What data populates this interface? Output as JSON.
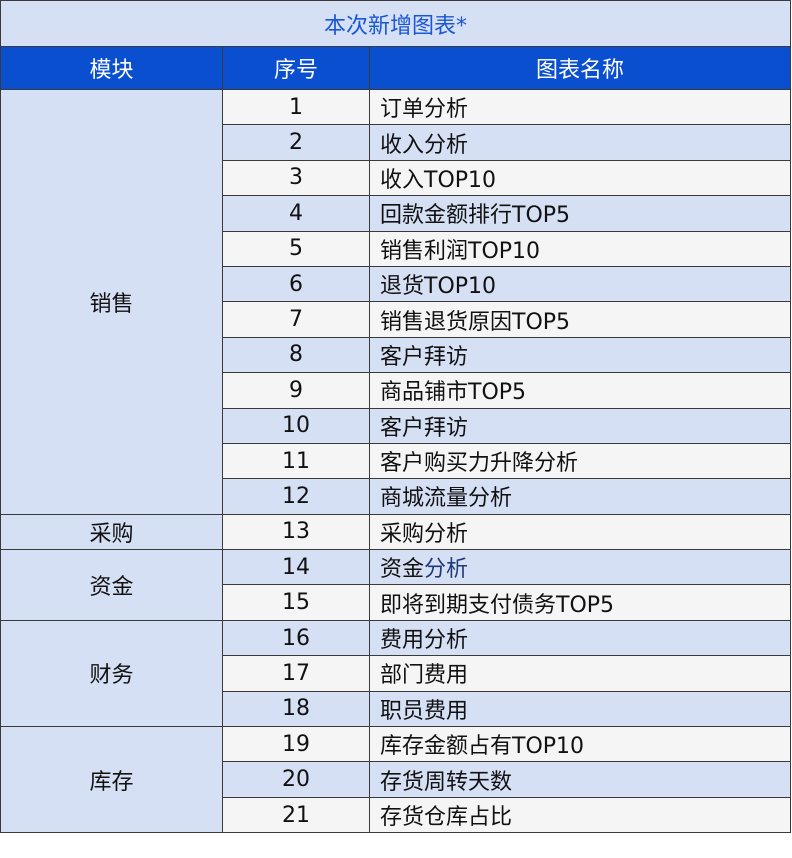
{
  "title": "本次新增图表*",
  "headers": {
    "module": "模块",
    "index": "序号",
    "name": "图表名称"
  },
  "colors": {
    "title_bg": "#d6e0f5",
    "title_text": "#1a56d6",
    "header_bg": "#0b4fd1",
    "row_alt": "#d6e0f5",
    "row_base": "#f5f5f5",
    "highlight_text": "#1f3a7a"
  },
  "modules": [
    {
      "label": "销售",
      "rows": 12
    },
    {
      "label": "采购",
      "rows": 1
    },
    {
      "label": "资金",
      "rows": 2
    },
    {
      "label": "财务",
      "rows": 3
    },
    {
      "label": "库存",
      "rows": 3
    }
  ],
  "rows": [
    {
      "index": "1",
      "name": "订单分析"
    },
    {
      "index": "2",
      "name": "收入分析"
    },
    {
      "index": "3",
      "name": "收入TOP10"
    },
    {
      "index": "4",
      "name": "回款金额排行TOP5"
    },
    {
      "index": "5",
      "name": "销售利润TOP10"
    },
    {
      "index": "6",
      "name": "退货TOP10"
    },
    {
      "index": "7",
      "name": "销售退货原因TOP5"
    },
    {
      "index": "8",
      "name": "客户拜访"
    },
    {
      "index": "9",
      "name": "商品铺市TOP5"
    },
    {
      "index": "10",
      "name": "客户拜访"
    },
    {
      "index": "11",
      "name": "客户购买力升降分析"
    },
    {
      "index": "12",
      "name": "商城流量分析"
    },
    {
      "index": "13",
      "name": "采购分析"
    },
    {
      "index": "14",
      "name": "资金",
      "name_highlight": "分析"
    },
    {
      "index": "15",
      "name": "即将到期支付债务TOP5"
    },
    {
      "index": "16",
      "name": "费用分析"
    },
    {
      "index": "17",
      "name": "部门费用"
    },
    {
      "index": "18",
      "name": "职员费用"
    },
    {
      "index": "19",
      "name": "库存金额占有TOP10"
    },
    {
      "index": "20",
      "name": "存货周转天数"
    },
    {
      "index": "21",
      "name": "存货仓库占比"
    }
  ]
}
